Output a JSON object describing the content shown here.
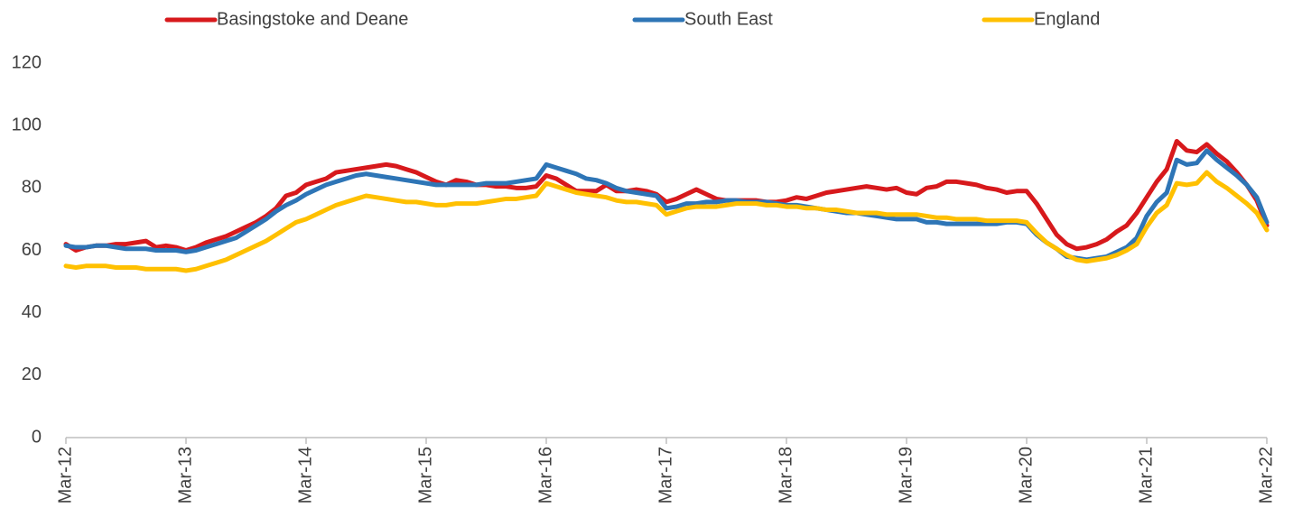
{
  "chart_data": {
    "type": "line",
    "categories": [
      "Mar-12",
      null,
      null,
      null,
      null,
      null,
      null,
      null,
      null,
      null,
      null,
      null,
      "Mar-13",
      null,
      null,
      null,
      null,
      null,
      null,
      null,
      null,
      null,
      null,
      null,
      "Mar-14",
      null,
      null,
      null,
      null,
      null,
      null,
      null,
      null,
      null,
      null,
      null,
      "Mar-15",
      null,
      null,
      null,
      null,
      null,
      null,
      null,
      null,
      null,
      null,
      null,
      "Mar-16",
      null,
      null,
      null,
      null,
      null,
      null,
      null,
      null,
      null,
      null,
      null,
      "Mar-17",
      null,
      null,
      null,
      null,
      null,
      null,
      null,
      null,
      null,
      null,
      null,
      "Mar-18",
      null,
      null,
      null,
      null,
      null,
      null,
      null,
      null,
      null,
      null,
      null,
      "Mar-19",
      null,
      null,
      null,
      null,
      null,
      null,
      null,
      null,
      null,
      null,
      null,
      "Mar-20",
      null,
      null,
      null,
      null,
      null,
      null,
      null,
      null,
      null,
      null,
      null,
      "Mar-21",
      null,
      null,
      null,
      null,
      null,
      null,
      null,
      null,
      null,
      null,
      null,
      "Mar-22"
    ],
    "series": [
      {
        "name": "Basingstoke and Deane",
        "color": "#d7191c",
        "values": [
          62,
          60,
          61,
          61.5,
          61.5,
          62,
          62,
          62.5,
          63,
          61,
          61.5,
          61,
          60,
          61,
          62.5,
          63.5,
          64.5,
          66,
          67.5,
          69,
          71,
          73.5,
          77.5,
          78.5,
          81,
          82,
          83,
          85,
          85.5,
          86,
          86.5,
          87,
          87.5,
          87,
          86,
          85,
          83.5,
          82,
          81,
          82.5,
          82,
          81,
          81,
          80.5,
          80.5,
          80,
          80,
          80.5,
          84,
          83,
          81,
          79,
          79,
          79,
          81,
          79,
          79,
          79.5,
          79,
          78,
          75.5,
          76.5,
          78,
          79.5,
          78,
          76.5,
          76,
          76,
          76,
          76,
          75.5,
          75.5,
          76,
          77,
          76.5,
          77.5,
          78.5,
          79,
          79.5,
          80,
          80.5,
          80,
          79.5,
          80,
          78.5,
          78,
          80,
          80.5,
          82,
          82,
          81.5,
          81,
          80,
          79.5,
          78.5,
          79,
          79,
          75,
          70,
          65,
          62,
          60.5,
          61,
          62,
          63.5,
          66,
          68,
          72,
          77,
          82,
          86,
          95,
          92,
          91.5,
          94,
          91,
          88.5,
          85,
          81,
          76,
          68
        ]
      },
      {
        "name": "South East",
        "color": "#2e75b6",
        "values": [
          61.5,
          61,
          61,
          61.5,
          61.5,
          61,
          60.5,
          60.5,
          60.5,
          60,
          60,
          60,
          59.5,
          60,
          61,
          62,
          63,
          64,
          66,
          68,
          70,
          72.5,
          74.5,
          76,
          78,
          79.5,
          81,
          82,
          83,
          84,
          84.5,
          84,
          83.5,
          83,
          82.5,
          82,
          81.5,
          81,
          81,
          81,
          81,
          81,
          81.5,
          81.5,
          81.5,
          82,
          82.5,
          83,
          87.5,
          86.5,
          85.5,
          84.5,
          83,
          82.5,
          81.5,
          80,
          79,
          78.5,
          78,
          77.5,
          73.5,
          74,
          75,
          75,
          75.5,
          75.5,
          76,
          76,
          75.5,
          75.5,
          75.5,
          75,
          74.5,
          74.5,
          74,
          73.5,
          73,
          72.5,
          72,
          72,
          71.5,
          71,
          70.5,
          70,
          70,
          70,
          69,
          69,
          68.5,
          68.5,
          68.5,
          68.5,
          68.5,
          68.5,
          69,
          69,
          68.5,
          65,
          62.5,
          60.5,
          58,
          57.5,
          57,
          57.5,
          58,
          59.5,
          61,
          64,
          71,
          75.5,
          78.5,
          89,
          87.5,
          88,
          92,
          89,
          86.5,
          84,
          81,
          77,
          69
        ]
      },
      {
        "name": "England",
        "color": "#ffc000",
        "values": [
          55,
          54.5,
          55,
          55,
          55,
          54.5,
          54.5,
          54.5,
          54,
          54,
          54,
          54,
          53.5,
          54,
          55,
          56,
          57,
          58.5,
          60,
          61.5,
          63,
          65,
          67,
          69,
          70,
          71.5,
          73,
          74.5,
          75.5,
          76.5,
          77.5,
          77,
          76.5,
          76,
          75.5,
          75.5,
          75,
          74.5,
          74.5,
          75,
          75,
          75,
          75.5,
          76,
          76.5,
          76.5,
          77,
          77.5,
          81.5,
          80.5,
          79.5,
          78.5,
          78,
          77.5,
          77,
          76,
          75.5,
          75.5,
          75,
          74.5,
          71.5,
          72.5,
          73.5,
          74,
          74,
          74,
          74.5,
          75,
          75,
          75,
          74.5,
          74.5,
          74,
          74,
          73.5,
          73.5,
          73,
          73,
          72.5,
          72,
          72,
          72,
          71.5,
          71.5,
          71.5,
          71.5,
          71,
          70.5,
          70.5,
          70,
          70,
          70,
          69.5,
          69.5,
          69.5,
          69.5,
          69,
          65.5,
          62.5,
          60.5,
          58.5,
          57,
          56.5,
          57,
          57.5,
          58.5,
          60,
          62,
          67.5,
          72,
          74.5,
          81.5,
          81,
          81.5,
          85,
          82,
          80,
          77.5,
          75,
          72,
          66.5
        ]
      }
    ],
    "ylim": [
      0,
      120
    ],
    "yticks": [
      0,
      20,
      40,
      60,
      80,
      100,
      120
    ],
    "grid": false,
    "legend": "top"
  }
}
